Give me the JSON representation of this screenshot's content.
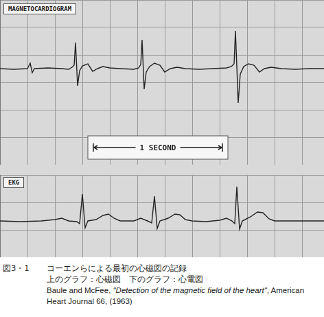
{
  "chart_data": [
    {
      "type": "line",
      "title": "MAGNETOCARDIOGRAM",
      "color": "#222222",
      "grid": true,
      "tick_labels": false,
      "xlim": [
        0,
        2.36
      ],
      "xticks": [
        0,
        0.2,
        0.4,
        0.6,
        0.8,
        1.0,
        1.2,
        1.4,
        1.6,
        1.8,
        2.0,
        2.2
      ],
      "ylim": [
        0,
        6
      ],
      "yticks": [
        0,
        1,
        2,
        3,
        4,
        5,
        6
      ],
      "x": [
        0,
        0.1,
        0.2,
        0.22,
        0.235,
        0.25,
        0.35,
        0.45,
        0.5,
        0.525,
        0.54,
        0.55,
        0.565,
        0.58,
        0.6,
        0.64,
        0.675,
        0.71,
        0.75,
        0.8,
        0.875,
        0.975,
        1.01,
        1.025,
        1.035,
        1.05,
        1.065,
        1.09,
        1.125,
        1.165,
        1.2,
        1.24,
        1.29,
        1.35,
        1.45,
        1.55,
        1.65,
        1.685,
        1.705,
        1.715,
        1.735,
        1.75,
        1.775,
        1.81,
        1.85,
        1.89,
        1.925,
        1.975,
        2.05,
        2.15,
        2.25,
        2.36
      ],
      "values": [
        3.5,
        3.475,
        3.5,
        3.7,
        3.35,
        3.5,
        3.525,
        3.5,
        3.475,
        3.55,
        3.625,
        4.45,
        2.875,
        3.425,
        3.6,
        3.675,
        3.4,
        3.5,
        3.575,
        3.525,
        3.5,
        3.475,
        3.525,
        3.65,
        4.55,
        2.75,
        3.375,
        3.575,
        3.7,
        3.625,
        3.375,
        3.5,
        3.55,
        3.5,
        3.475,
        3.5,
        3.525,
        3.575,
        3.675,
        4.875,
        2.25,
        3.3,
        3.575,
        3.675,
        3.625,
        3.375,
        3.5,
        3.55,
        3.5,
        3.475,
        3.5,
        3.5
      ],
      "annotations": [
        {
          "text": "1 SECOND",
          "x": [
            0.65,
            1.65
          ]
        }
      ]
    },
    {
      "type": "line",
      "title": "EKG",
      "color": "#222222",
      "grid": true,
      "tick_labels": false,
      "xlim": [
        0,
        2.36
      ],
      "xticks": [
        0,
        0.2,
        0.4,
        0.6,
        0.8,
        1.0,
        1.2,
        1.4,
        1.6,
        1.8,
        2.0,
        2.2
      ],
      "ylim": [
        0,
        3
      ],
      "yticks": [
        0,
        1,
        2,
        3
      ],
      "x": [
        0,
        0.15,
        0.3,
        0.4,
        0.45,
        0.5,
        0.56,
        0.58,
        0.6,
        0.62,
        0.64,
        0.7,
        0.75,
        0.79,
        0.83,
        0.875,
        0.975,
        1.025,
        1.075,
        1.105,
        1.125,
        1.145,
        1.165,
        1.225,
        1.275,
        1.31,
        1.35,
        1.4,
        1.5,
        1.6,
        1.65,
        1.69,
        1.71,
        1.725,
        1.745,
        1.765,
        1.825,
        1.875,
        1.915,
        1.96,
        2.0,
        2.15,
        2.36
      ],
      "values": [
        1.325,
        1.3,
        1.325,
        1.375,
        1.425,
        1.325,
        1.3,
        1.225,
        2.3,
        1.075,
        1.325,
        1.375,
        1.525,
        1.575,
        1.425,
        1.325,
        1.325,
        1.425,
        1.325,
        1.25,
        2.225,
        1.05,
        1.325,
        1.425,
        1.575,
        1.55,
        1.375,
        1.325,
        1.3,
        1.35,
        1.425,
        1.325,
        1.225,
        2.575,
        1.025,
        1.325,
        1.475,
        1.65,
        1.625,
        1.4,
        1.325,
        1.325,
        1.325
      ]
    }
  ],
  "caption": {
    "label": "図3・1",
    "lines": [
      "コーエンらによる最初の心磁図の記録",
      "上のグラフ：心磁図　下のグラフ：心電図"
    ],
    "citation": {
      "authors": "Baule and McFee,",
      "title": "\"Detection of the magnetic field of the heart\"",
      "source": ", American Heart Journal 66, (1963)"
    }
  }
}
